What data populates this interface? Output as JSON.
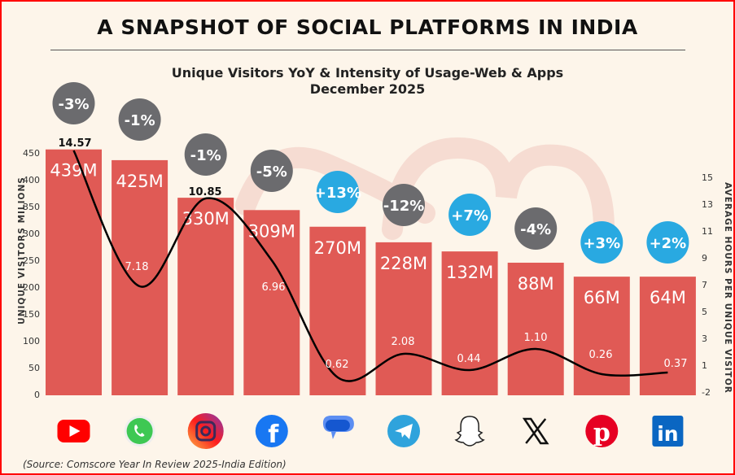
{
  "chart_data": {
    "type": "bar",
    "title": "A SNAPSHOT OF SOCIAL PLATFORMS IN INDIA",
    "subtitle": "Unique Visitors YoY & Intensity of Usage-Web & Apps",
    "period": "December 2025",
    "ylabel": "UNIQUE VISITORS MILIONS",
    "y2label": "AVERAGE HOURS PER UNIQUE VISITOR",
    "ylim": [
      0,
      450
    ],
    "yticks": [
      "450",
      "400",
      "350",
      "300",
      "250",
      "200",
      "150",
      "100",
      "50",
      "0"
    ],
    "y2ticks": [
      "15",
      "13",
      "11",
      "9",
      "7",
      "5",
      "3",
      "1",
      "-2"
    ],
    "categories": [
      "YouTube",
      "WhatsApp",
      "Instagram",
      "Facebook",
      "Google Messages",
      "Telegram",
      "Snapchat",
      "X",
      "Pinterest",
      "LinkedIn"
    ],
    "series": [
      {
        "name": "Unique Visitors (M)",
        "type": "bar",
        "values": [
          439,
          425,
          330,
          309,
          270,
          228,
          132,
          88,
          66,
          64
        ],
        "labels": [
          "439M",
          "425M",
          "330M",
          "309M",
          "270M",
          "228M",
          "132M",
          "88M",
          "66M",
          "64M"
        ]
      },
      {
        "name": "Average Hours per Unique Visitor",
        "type": "line",
        "values": [
          14.57,
          7.18,
          10.85,
          6.96,
          0.62,
          2.08,
          0.44,
          1.1,
          0.26,
          0.37
        ],
        "labels": [
          "14.57",
          "7.18",
          "10.85",
          "6.96",
          "0.62",
          "2.08",
          "0.44",
          "1.10",
          "0.26",
          "0.37"
        ]
      },
      {
        "name": "YoY change",
        "type": "badge",
        "values": [
          -3,
          -1,
          -1,
          -5,
          13,
          -12,
          7,
          -4,
          3,
          2
        ],
        "labels": [
          "-3%",
          "-1%",
          "-1%",
          "-5%",
          "+13%",
          "-12%",
          "+7%",
          "-4%",
          "+3%",
          "+2%"
        ]
      }
    ],
    "colors": {
      "bar": "#e05a55",
      "negative": "#6b6b6e",
      "positive": "#29a9e1",
      "line": "#000000"
    }
  },
  "source": "(Source: Comscore Year In Review 2025-India Edition)",
  "icons": [
    "youtube-icon",
    "whatsapp-icon",
    "instagram-icon",
    "facebook-icon",
    "google-messages-icon",
    "telegram-icon",
    "snapchat-icon",
    "x-icon",
    "pinterest-icon",
    "linkedin-icon"
  ]
}
